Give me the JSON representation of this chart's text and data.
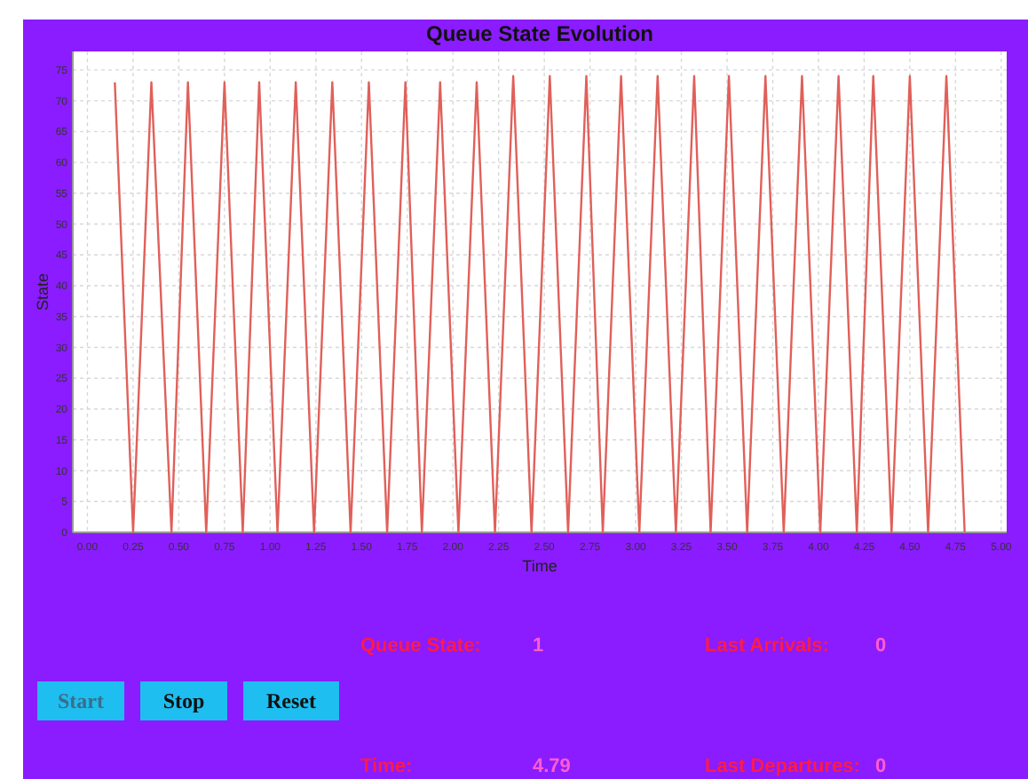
{
  "chart_data": {
    "type": "line",
    "title": "Queue State Evolution",
    "xlabel": "Time",
    "ylabel": "State",
    "x": [
      0.15,
      0.25,
      0.35,
      0.46,
      0.55,
      0.65,
      0.75,
      0.85,
      0.94,
      1.04,
      1.14,
      1.24,
      1.34,
      1.44,
      1.54,
      1.64,
      1.74,
      1.83,
      1.93,
      2.03,
      2.13,
      2.23,
      2.33,
      2.43,
      2.53,
      2.63,
      2.73,
      2.82,
      2.92,
      3.02,
      3.12,
      3.22,
      3.32,
      3.41,
      3.51,
      3.61,
      3.71,
      3.81,
      3.91,
      4.01,
      4.11,
      4.21,
      4.3,
      4.4,
      4.5,
      4.6,
      4.7,
      4.8
    ],
    "series": [
      {
        "color": "#e0605a",
        "values": [
          73,
          0,
          73,
          0,
          73,
          0,
          73,
          0,
          73,
          0,
          73,
          0,
          73,
          0,
          73,
          0,
          73,
          0,
          73,
          0,
          73,
          0,
          74,
          0,
          74,
          0,
          74,
          0,
          74,
          0,
          74,
          0,
          74,
          0,
          74,
          0,
          74,
          0,
          74,
          0,
          74,
          0,
          74,
          0,
          74,
          0,
          74,
          0
        ]
      }
    ],
    "xlim": [
      -0.08,
      5.03
    ],
    "ylim": [
      0,
      78
    ],
    "xticks": [
      {
        "value": 0,
        "label": "0.00"
      },
      {
        "value": 0.25,
        "label": "0.25"
      },
      {
        "value": 0.5,
        "label": "0.50"
      },
      {
        "value": 0.75,
        "label": "0.75"
      },
      {
        "value": 1,
        "label": "1.00"
      },
      {
        "value": 1.25,
        "label": "1.25"
      },
      {
        "value": 1.5,
        "label": "1.50"
      },
      {
        "value": 1.75,
        "label": "1.75"
      },
      {
        "value": 2,
        "label": "2.00"
      },
      {
        "value": 2.25,
        "label": "2.25"
      },
      {
        "value": 2.5,
        "label": "2.50"
      },
      {
        "value": 2.75,
        "label": "2.75"
      },
      {
        "value": 3,
        "label": "3.00"
      },
      {
        "value": 3.25,
        "label": "3.25"
      },
      {
        "value": 3.5,
        "label": "3.50"
      },
      {
        "value": 3.75,
        "label": "3.75"
      },
      {
        "value": 4,
        "label": "4.00"
      },
      {
        "value": 4.25,
        "label": "4.25"
      },
      {
        "value": 4.5,
        "label": "4.50"
      },
      {
        "value": 4.75,
        "label": "4.75"
      },
      {
        "value": 5,
        "label": "5.00"
      }
    ],
    "yticks": [
      0,
      5,
      10,
      15,
      20,
      25,
      30,
      35,
      40,
      45,
      50,
      55,
      60,
      65,
      70,
      75
    ],
    "grid": true,
    "marker": "none",
    "line_style": "solid",
    "annotations": [
      "Start",
      "Stop",
      "Reset",
      "Queue State:",
      "1",
      "Last Arrivals:",
      "0",
      "Time:",
      "4.79",
      "Last Departures:",
      "0"
    ]
  }
}
